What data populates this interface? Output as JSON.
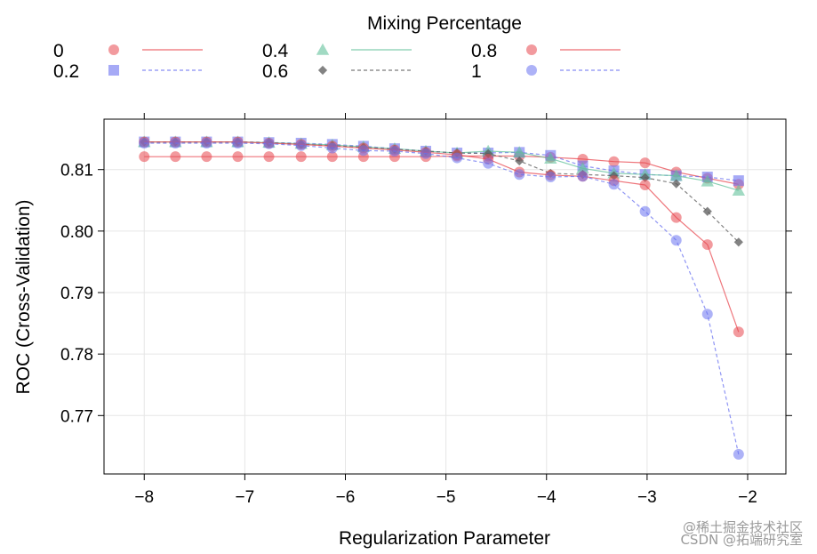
{
  "chart_data": {
    "type": "line",
    "title": "",
    "xlabel": "Regularization Parameter",
    "ylabel": "ROC (Cross-Validation)",
    "xlim": [
      -8.4,
      -1.62
    ],
    "ylim": [
      0.7605,
      0.8182
    ],
    "xticks": [
      -8,
      -7,
      -6,
      -5,
      -4,
      -3,
      -2
    ],
    "xtick_labels": [
      "−8",
      "−7",
      "−6",
      "−5",
      "−4",
      "−3",
      "−2"
    ],
    "yticks": [
      0.77,
      0.78,
      0.79,
      0.8,
      0.81
    ],
    "ytick_labels": [
      "0.77",
      "0.78",
      "0.79",
      "0.80",
      "0.81"
    ],
    "grid": true,
    "legend": {
      "title": "Mixing Percentage",
      "placement": "top"
    },
    "x": [
      -8.0,
      -7.69,
      -7.38,
      -7.07,
      -6.76,
      -6.44,
      -6.13,
      -5.82,
      -5.51,
      -5.2,
      -4.89,
      -4.58,
      -4.27,
      -3.96,
      -3.64,
      -3.33,
      -3.02,
      -2.71,
      -2.4,
      -2.09
    ],
    "series": [
      {
        "name": "0",
        "marker": "circle",
        "line": "solid",
        "color": "#e8474f",
        "values": [
          0.8121,
          0.8121,
          0.8121,
          0.8121,
          0.8121,
          0.8121,
          0.8121,
          0.8121,
          0.8121,
          0.8121,
          0.8122,
          0.8122,
          0.8122,
          0.812,
          0.8117,
          0.8113,
          0.8111,
          0.8096,
          0.8086,
          0.8076
        ]
      },
      {
        "name": "0.2",
        "marker": "square",
        "line": "dashed",
        "color": "#6a72f0",
        "values": [
          0.8145,
          0.8145,
          0.8145,
          0.8145,
          0.8144,
          0.8143,
          0.8141,
          0.8138,
          0.8134,
          0.813,
          0.8127,
          0.8127,
          0.8128,
          0.8123,
          0.8106,
          0.8098,
          0.8092,
          0.809,
          0.8088,
          0.8082
        ]
      },
      {
        "name": "0.4",
        "marker": "triangle",
        "line": "solid",
        "color": "#63c29b",
        "values": [
          0.8145,
          0.8145,
          0.8145,
          0.8145,
          0.8144,
          0.8142,
          0.814,
          0.8137,
          0.8134,
          0.813,
          0.8127,
          0.813,
          0.8128,
          0.8118,
          0.8102,
          0.8094,
          0.8092,
          0.809,
          0.8081,
          0.8066
        ]
      },
      {
        "name": "0.6",
        "marker": "diamond",
        "line": "dashed",
        "color": "#5a5a5a",
        "values": [
          0.8145,
          0.8145,
          0.8145,
          0.8145,
          0.8144,
          0.8141,
          0.8139,
          0.8136,
          0.8133,
          0.813,
          0.8127,
          0.8126,
          0.8114,
          0.8094,
          0.8092,
          0.809,
          0.8087,
          0.8077,
          0.8032,
          0.7982
        ]
      },
      {
        "name": "0.8",
        "marker": "circle",
        "line": "solid",
        "color": "#e8474f",
        "values": [
          0.8145,
          0.8145,
          0.8145,
          0.8145,
          0.8143,
          0.8141,
          0.8138,
          0.8135,
          0.8132,
          0.8128,
          0.8124,
          0.8117,
          0.8096,
          0.8091,
          0.8089,
          0.8082,
          0.8075,
          0.8022,
          0.7978,
          0.7836
        ]
      },
      {
        "name": "1",
        "marker": "circle",
        "line": "dashed",
        "color": "#6a72f0",
        "values": [
          0.8143,
          0.8143,
          0.8143,
          0.8143,
          0.8142,
          0.8139,
          0.8135,
          0.8131,
          0.813,
          0.8126,
          0.8119,
          0.811,
          0.8092,
          0.8088,
          0.8089,
          0.8076,
          0.8032,
          0.7985,
          0.7865,
          0.7637
        ]
      }
    ]
  },
  "watermark": {
    "line1": "@稀土掘金技术社区",
    "line2": "CSDN @拓端研究室"
  }
}
